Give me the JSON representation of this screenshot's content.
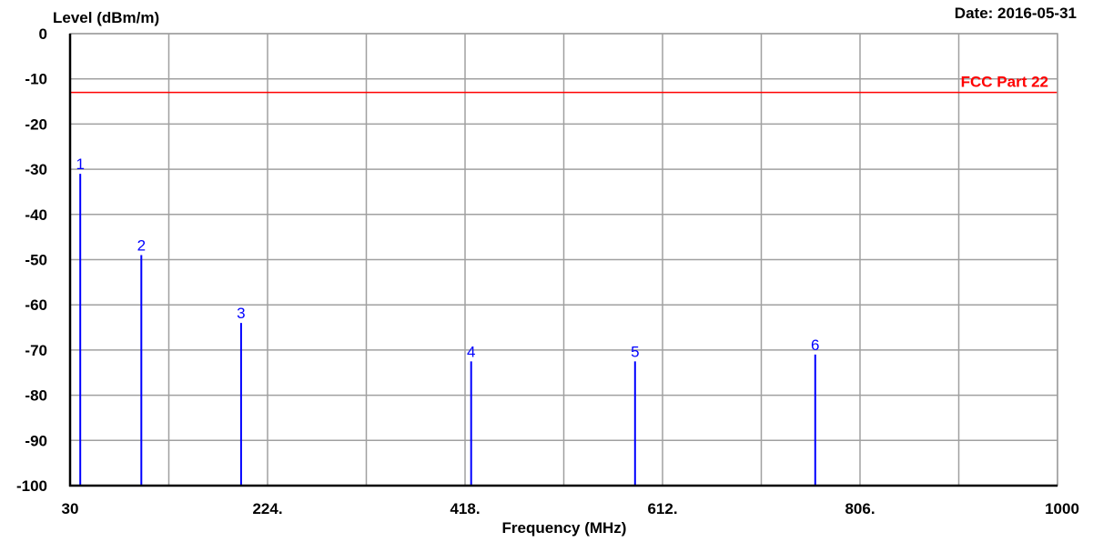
{
  "chart_data": {
    "type": "bar",
    "ylabel": "Level (dBm/m)",
    "xlabel": "Frequency (MHz)",
    "date_label": "Date: 2016-05-31",
    "xlim": [
      30,
      1000
    ],
    "ylim": [
      -100,
      0
    ],
    "x_ticks": [
      30,
      224,
      418,
      612,
      806,
      1000
    ],
    "x_tick_labels": [
      "30",
      "224.",
      "418.",
      "612.",
      "806.",
      "1000"
    ],
    "y_ticks": [
      0,
      -10,
      -20,
      -30,
      -40,
      -50,
      -60,
      -70,
      -80,
      -90,
      -100
    ],
    "y_tick_labels": [
      "0",
      "-10",
      "-20",
      "-30",
      "-40",
      "-50",
      "-60",
      "-70",
      "-80",
      "-90",
      "-100"
    ],
    "x_gridlines": [
      30,
      127,
      224,
      321,
      418,
      515,
      612,
      709,
      806,
      903,
      1000
    ],
    "grid": true,
    "baseline": -100,
    "limit_line": {
      "name": "FCC Part 22",
      "value": -13,
      "color": "#ff0000"
    },
    "series_color": "#0000ff",
    "markers": [
      {
        "label": "1",
        "x": 40,
        "y": -31
      },
      {
        "label": "2",
        "x": 100,
        "y": -49
      },
      {
        "label": "3",
        "x": 198,
        "y": -64
      },
      {
        "label": "4",
        "x": 424,
        "y": -72.5
      },
      {
        "label": "5",
        "x": 585,
        "y": -72.5
      },
      {
        "label": "6",
        "x": 762,
        "y": -71
      }
    ]
  }
}
